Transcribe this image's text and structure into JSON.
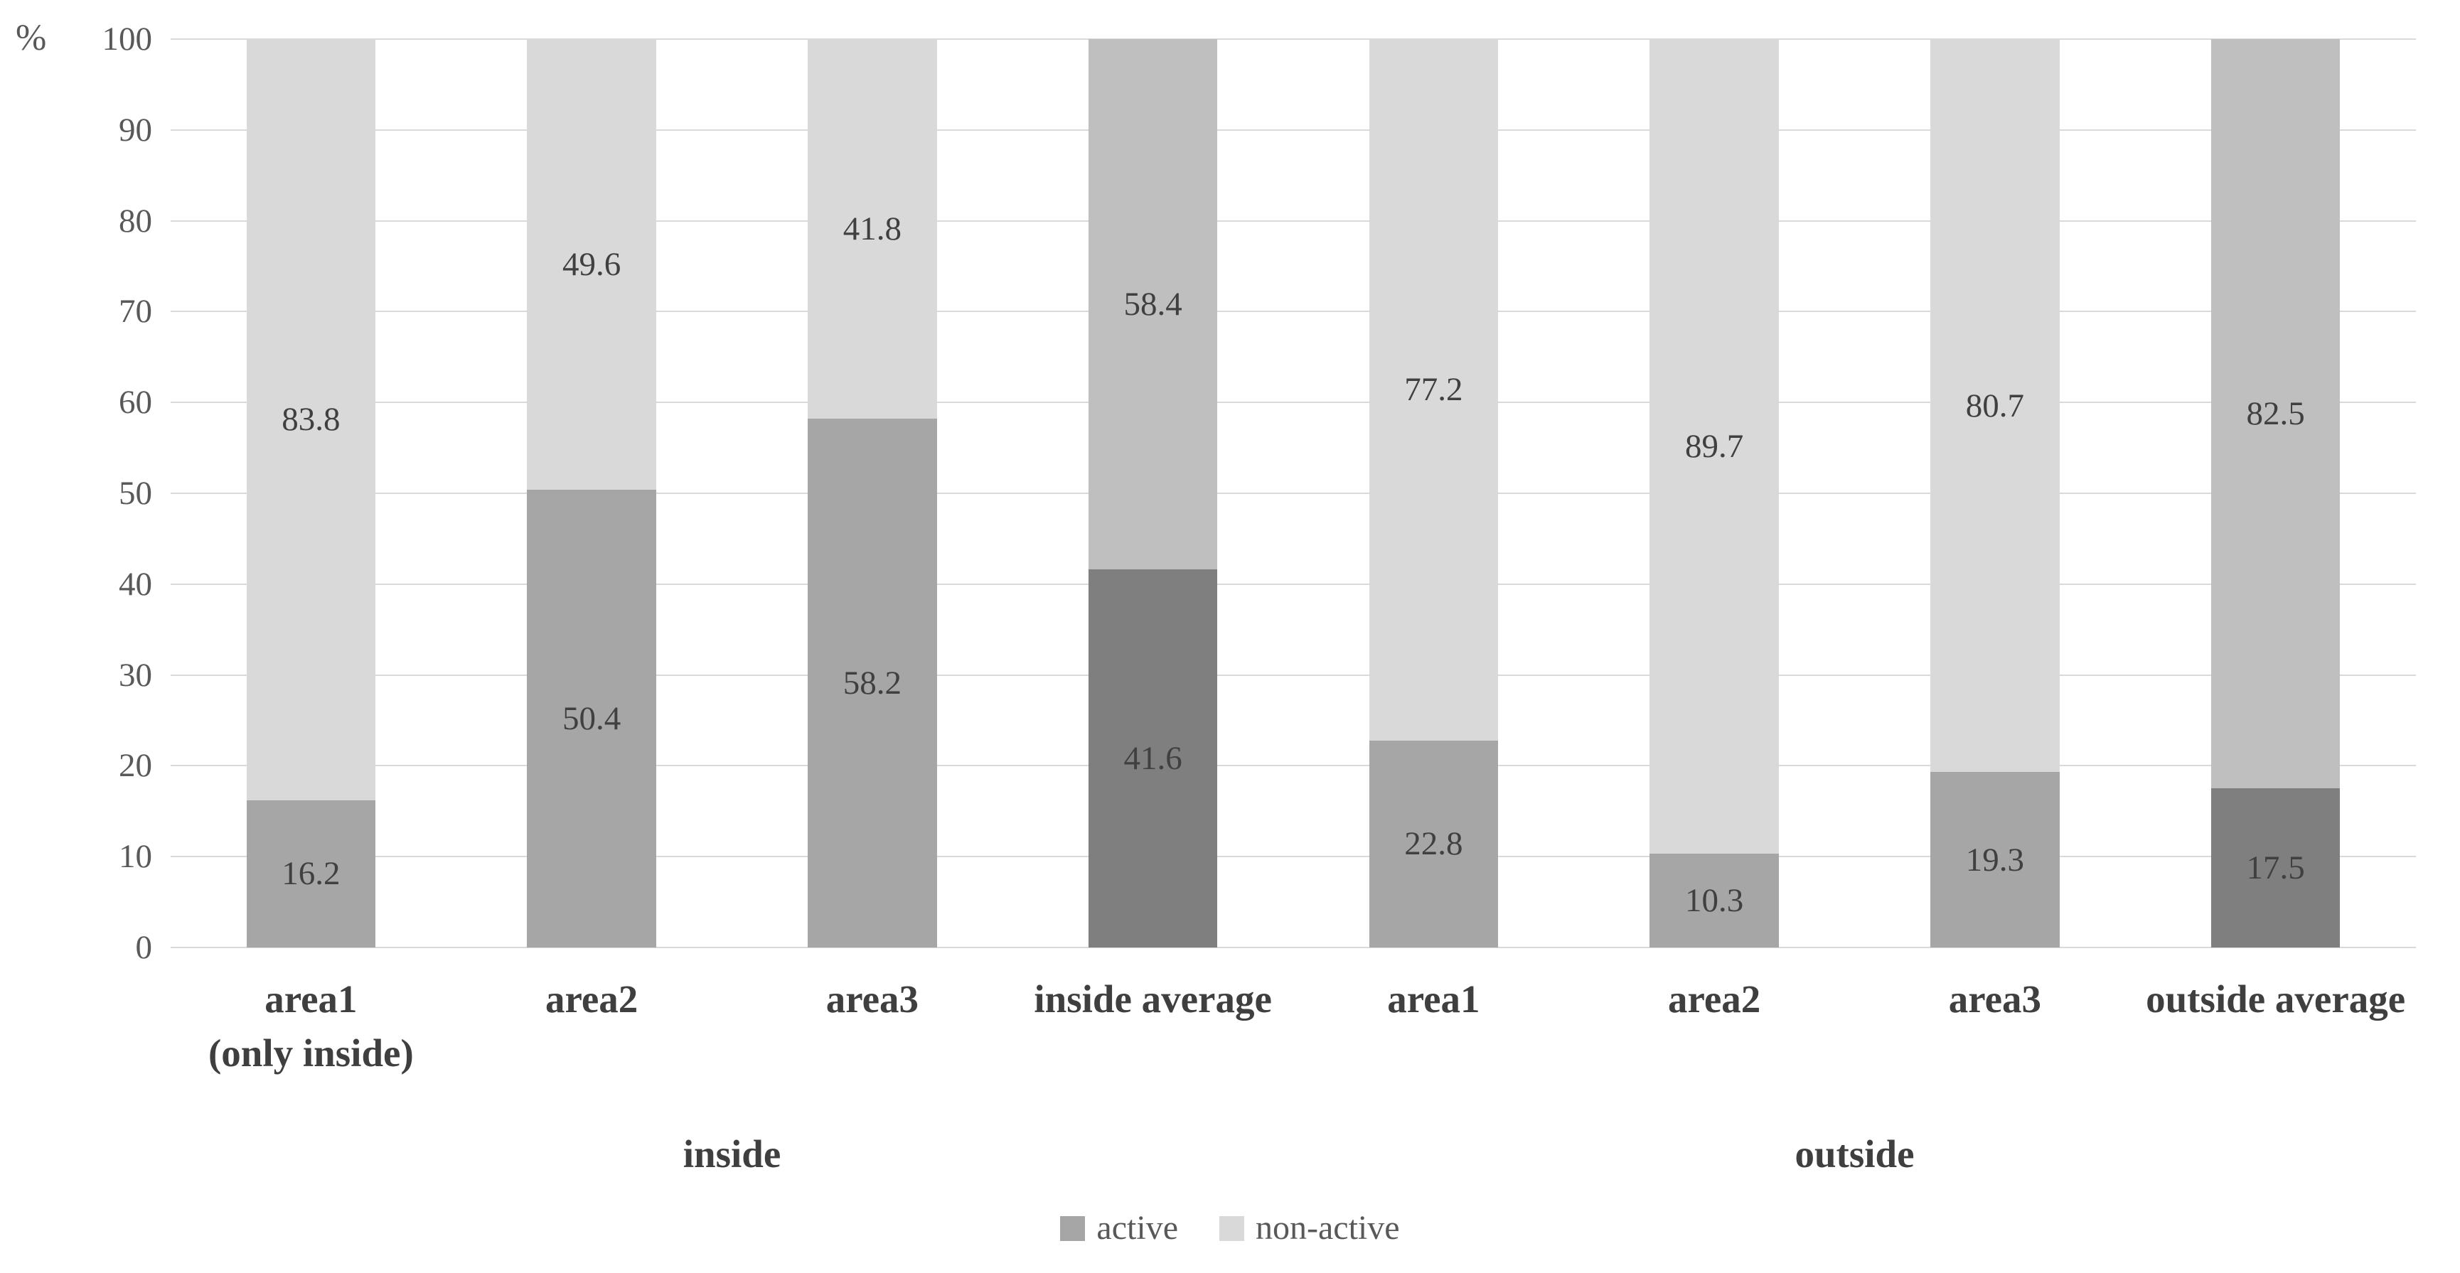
{
  "chart_data": {
    "type": "bar",
    "stacked": true,
    "ylabel": "%",
    "y_axis": {
      "min": 0,
      "max": 100,
      "step": 10,
      "ticks": [
        100,
        90,
        80,
        70,
        60,
        50,
        40,
        30,
        20,
        10,
        0
      ]
    },
    "grid": true,
    "categories": [
      {
        "label": "area1",
        "sublabel": "(only inside)",
        "average": false
      },
      {
        "label": "area2",
        "average": false
      },
      {
        "label": "area3",
        "average": false
      },
      {
        "label": "inside average",
        "average": true
      },
      {
        "label": "area1",
        "average": false
      },
      {
        "label": "area2",
        "average": false
      },
      {
        "label": "area3",
        "average": false
      },
      {
        "label": "outside average",
        "average": true
      }
    ],
    "series": [
      {
        "name": "active",
        "values": [
          16.2,
          50.4,
          58.2,
          41.6,
          22.8,
          10.3,
          19.3,
          17.5
        ]
      },
      {
        "name": "non-active",
        "values": [
          83.8,
          49.6,
          41.8,
          58.4,
          77.2,
          89.7,
          80.7,
          82.5
        ]
      }
    ],
    "groups": [
      {
        "label": "inside",
        "span": 4
      },
      {
        "label": "outside",
        "span": 4
      }
    ],
    "legend": [
      {
        "label": "active",
        "swatch": "active"
      },
      {
        "label": "non-active",
        "swatch": "non_active"
      }
    ],
    "legend_position": "bottom-center",
    "palette": {
      "active": "#a6a6a6",
      "non_active": "#d9d9d9",
      "active_average": "#7f7f7f",
      "non_active_average": "#bfbfbf",
      "gridline": "#d9d9d9",
      "value_label_text": "#404040",
      "axis_text": "#595959",
      "category_text": "#3f3f3f"
    }
  }
}
